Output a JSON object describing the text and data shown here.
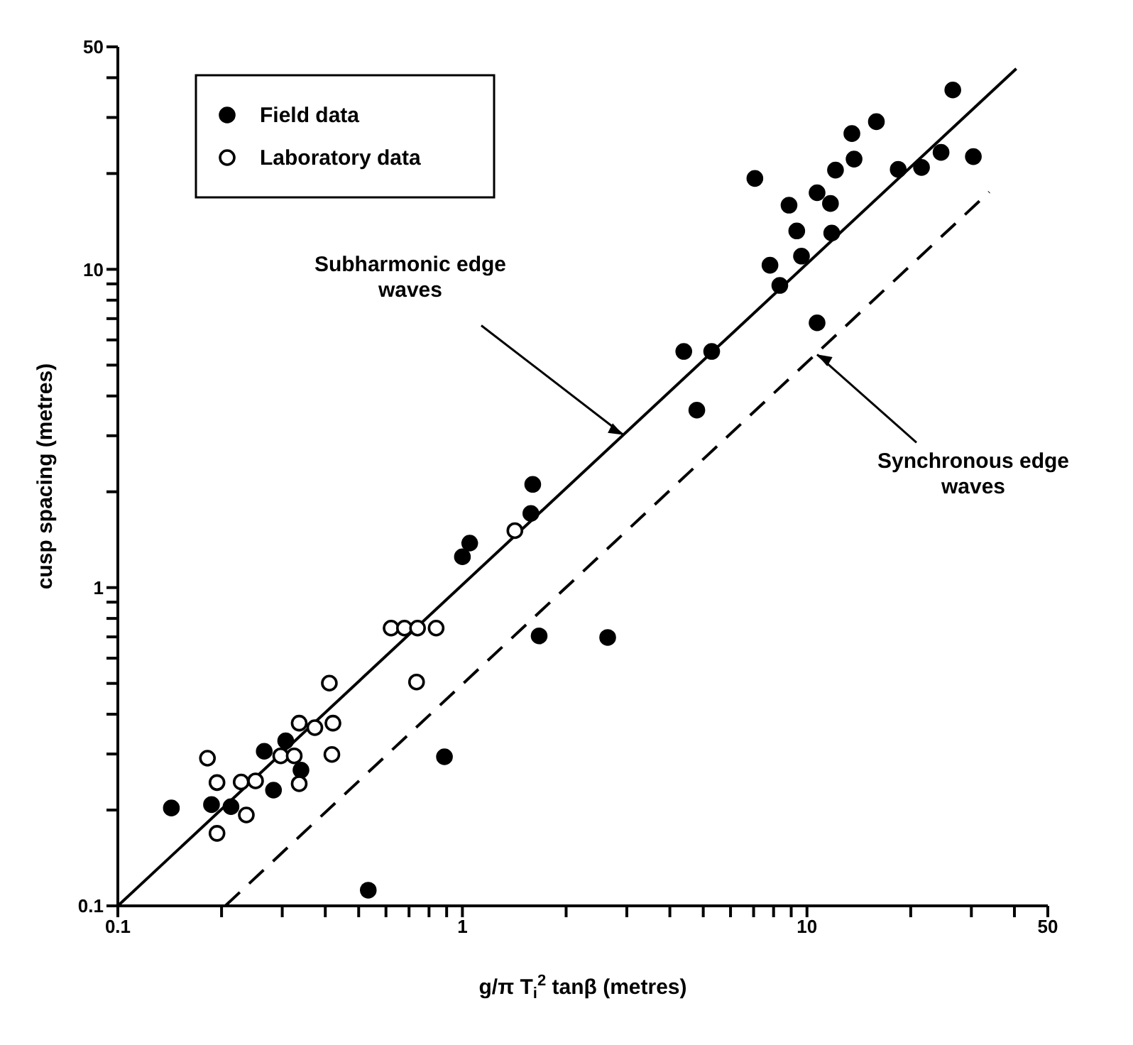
{
  "chart_data": {
    "type": "scatter",
    "xlabel": "g/π T$_{i}$$^{2}$ tanβ (metres)",
    "ylabel": "cusp spacing (metres)",
    "log": "xy",
    "xlim": [
      0.1,
      50
    ],
    "ylim": [
      0.1,
      50
    ],
    "xticks": [
      0.1,
      {
        "value": 0.2,
        "label": null
      },
      {
        "value": 0.3,
        "label": null
      },
      {
        "value": 0.4,
        "label": null
      },
      {
        "value": 0.5,
        "label": null
      },
      {
        "value": 0.6,
        "label": null
      },
      {
        "value": 0.7,
        "label": null
      },
      {
        "value": 0.8,
        "label": null
      },
      {
        "value": 0.9,
        "label": null
      },
      1,
      {
        "value": 2,
        "label": null
      },
      {
        "value": 3,
        "label": null
      },
      {
        "value": 4,
        "label": null
      },
      {
        "value": 5,
        "label": null
      },
      {
        "value": 6,
        "label": null
      },
      {
        "value": 7,
        "label": null
      },
      {
        "value": 8,
        "label": null
      },
      {
        "value": 9,
        "label": null
      },
      10,
      {
        "value": 20,
        "label": null
      },
      {
        "value": 30,
        "label": null
      },
      {
        "value": 40,
        "label": null
      },
      50
    ],
    "yticks": [
      0.1,
      {
        "value": 0.2,
        "label": null
      },
      {
        "value": 0.3,
        "label": null
      },
      {
        "value": 0.4,
        "label": null
      },
      {
        "value": 0.5,
        "label": null
      },
      {
        "value": 0.6,
        "label": null
      },
      {
        "value": 0.7,
        "label": null
      },
      {
        "value": 0.8,
        "label": null
      },
      {
        "value": 0.9,
        "label": null
      },
      1,
      {
        "value": 2,
        "label": null
      },
      {
        "value": 3,
        "label": null
      },
      {
        "value": 4,
        "label": null
      },
      {
        "value": 5,
        "label": null
      },
      {
        "value": 6,
        "label": null
      },
      {
        "value": 7,
        "label": null
      },
      {
        "value": 8,
        "label": null
      },
      {
        "value": 9,
        "label": null
      },
      10,
      {
        "value": 20,
        "label": null
      },
      {
        "value": 30,
        "label": null
      },
      {
        "value": 40,
        "label": null
      },
      50
    ],
    "legend": "top left",
    "marker": "circle",
    "series": [
      {
        "name": "Field data",
        "color": "#000000",
        "x": [
          0.143,
          0.187,
          0.213,
          0.266,
          0.307,
          0.34,
          0.283,
          0.887,
          0.533,
          1.0,
          1.05,
          1.58,
          1.6,
          1.67,
          2.64,
          26.5,
          15.9,
          13.5,
          13.7,
          12.1,
          18.4,
          21.5,
          24.5,
          30.4,
          7.06,
          10.7,
          11.7,
          8.87,
          9.34,
          11.8,
          9.64,
          7.81,
          8.34,
          10.7,
          4.39,
          5.29,
          4.79
        ],
        "values": [
          0.203,
          0.208,
          0.205,
          0.306,
          0.33,
          0.267,
          0.231,
          0.294,
          0.112,
          1.25,
          1.38,
          1.71,
          2.11,
          0.705,
          0.697,
          36.6,
          29.1,
          26.7,
          22.2,
          20.5,
          20.6,
          20.9,
          23.3,
          22.6,
          19.3,
          17.4,
          16.1,
          15.9,
          13.2,
          13.0,
          11.0,
          10.3,
          8.9,
          6.79,
          5.52,
          5.52,
          3.61
        ]
      },
      {
        "name": "Laboratory data",
        "color": "#ffffff",
        "x": [
          0.182,
          0.194,
          0.194,
          0.228,
          0.251,
          0.236,
          0.297,
          0.325,
          0.336,
          0.336,
          0.373,
          0.421,
          0.418,
          0.411,
          0.736,
          0.621,
          0.679,
          0.741,
          0.839,
          1.42
        ],
        "values": [
          0.291,
          0.244,
          0.169,
          0.245,
          0.247,
          0.193,
          0.296,
          0.296,
          0.242,
          0.375,
          0.363,
          0.375,
          0.299,
          0.501,
          0.505,
          0.746,
          0.746,
          0.746,
          0.746,
          1.51
        ]
      },
      {
        "type": "line",
        "color": "#000000",
        "line_style": "solid",
        "marker": "none",
        "x": [
          0.1,
          40.5
        ],
        "values": [
          0.1,
          42.7
        ]
      },
      {
        "type": "line",
        "color": "#000000",
        "line_style": "dashed",
        "marker": "none",
        "x": [
          0.205,
          33.8
        ],
        "values": [
          0.1,
          17.5
        ]
      }
    ],
    "annotations": [
      {
        "text": "Subharmonic edge waves",
        "x": 2.93,
        "y": 3.02
      },
      {
        "text": "Synchronous edge waves",
        "x": 10.7,
        "y": 5.4
      }
    ]
  }
}
